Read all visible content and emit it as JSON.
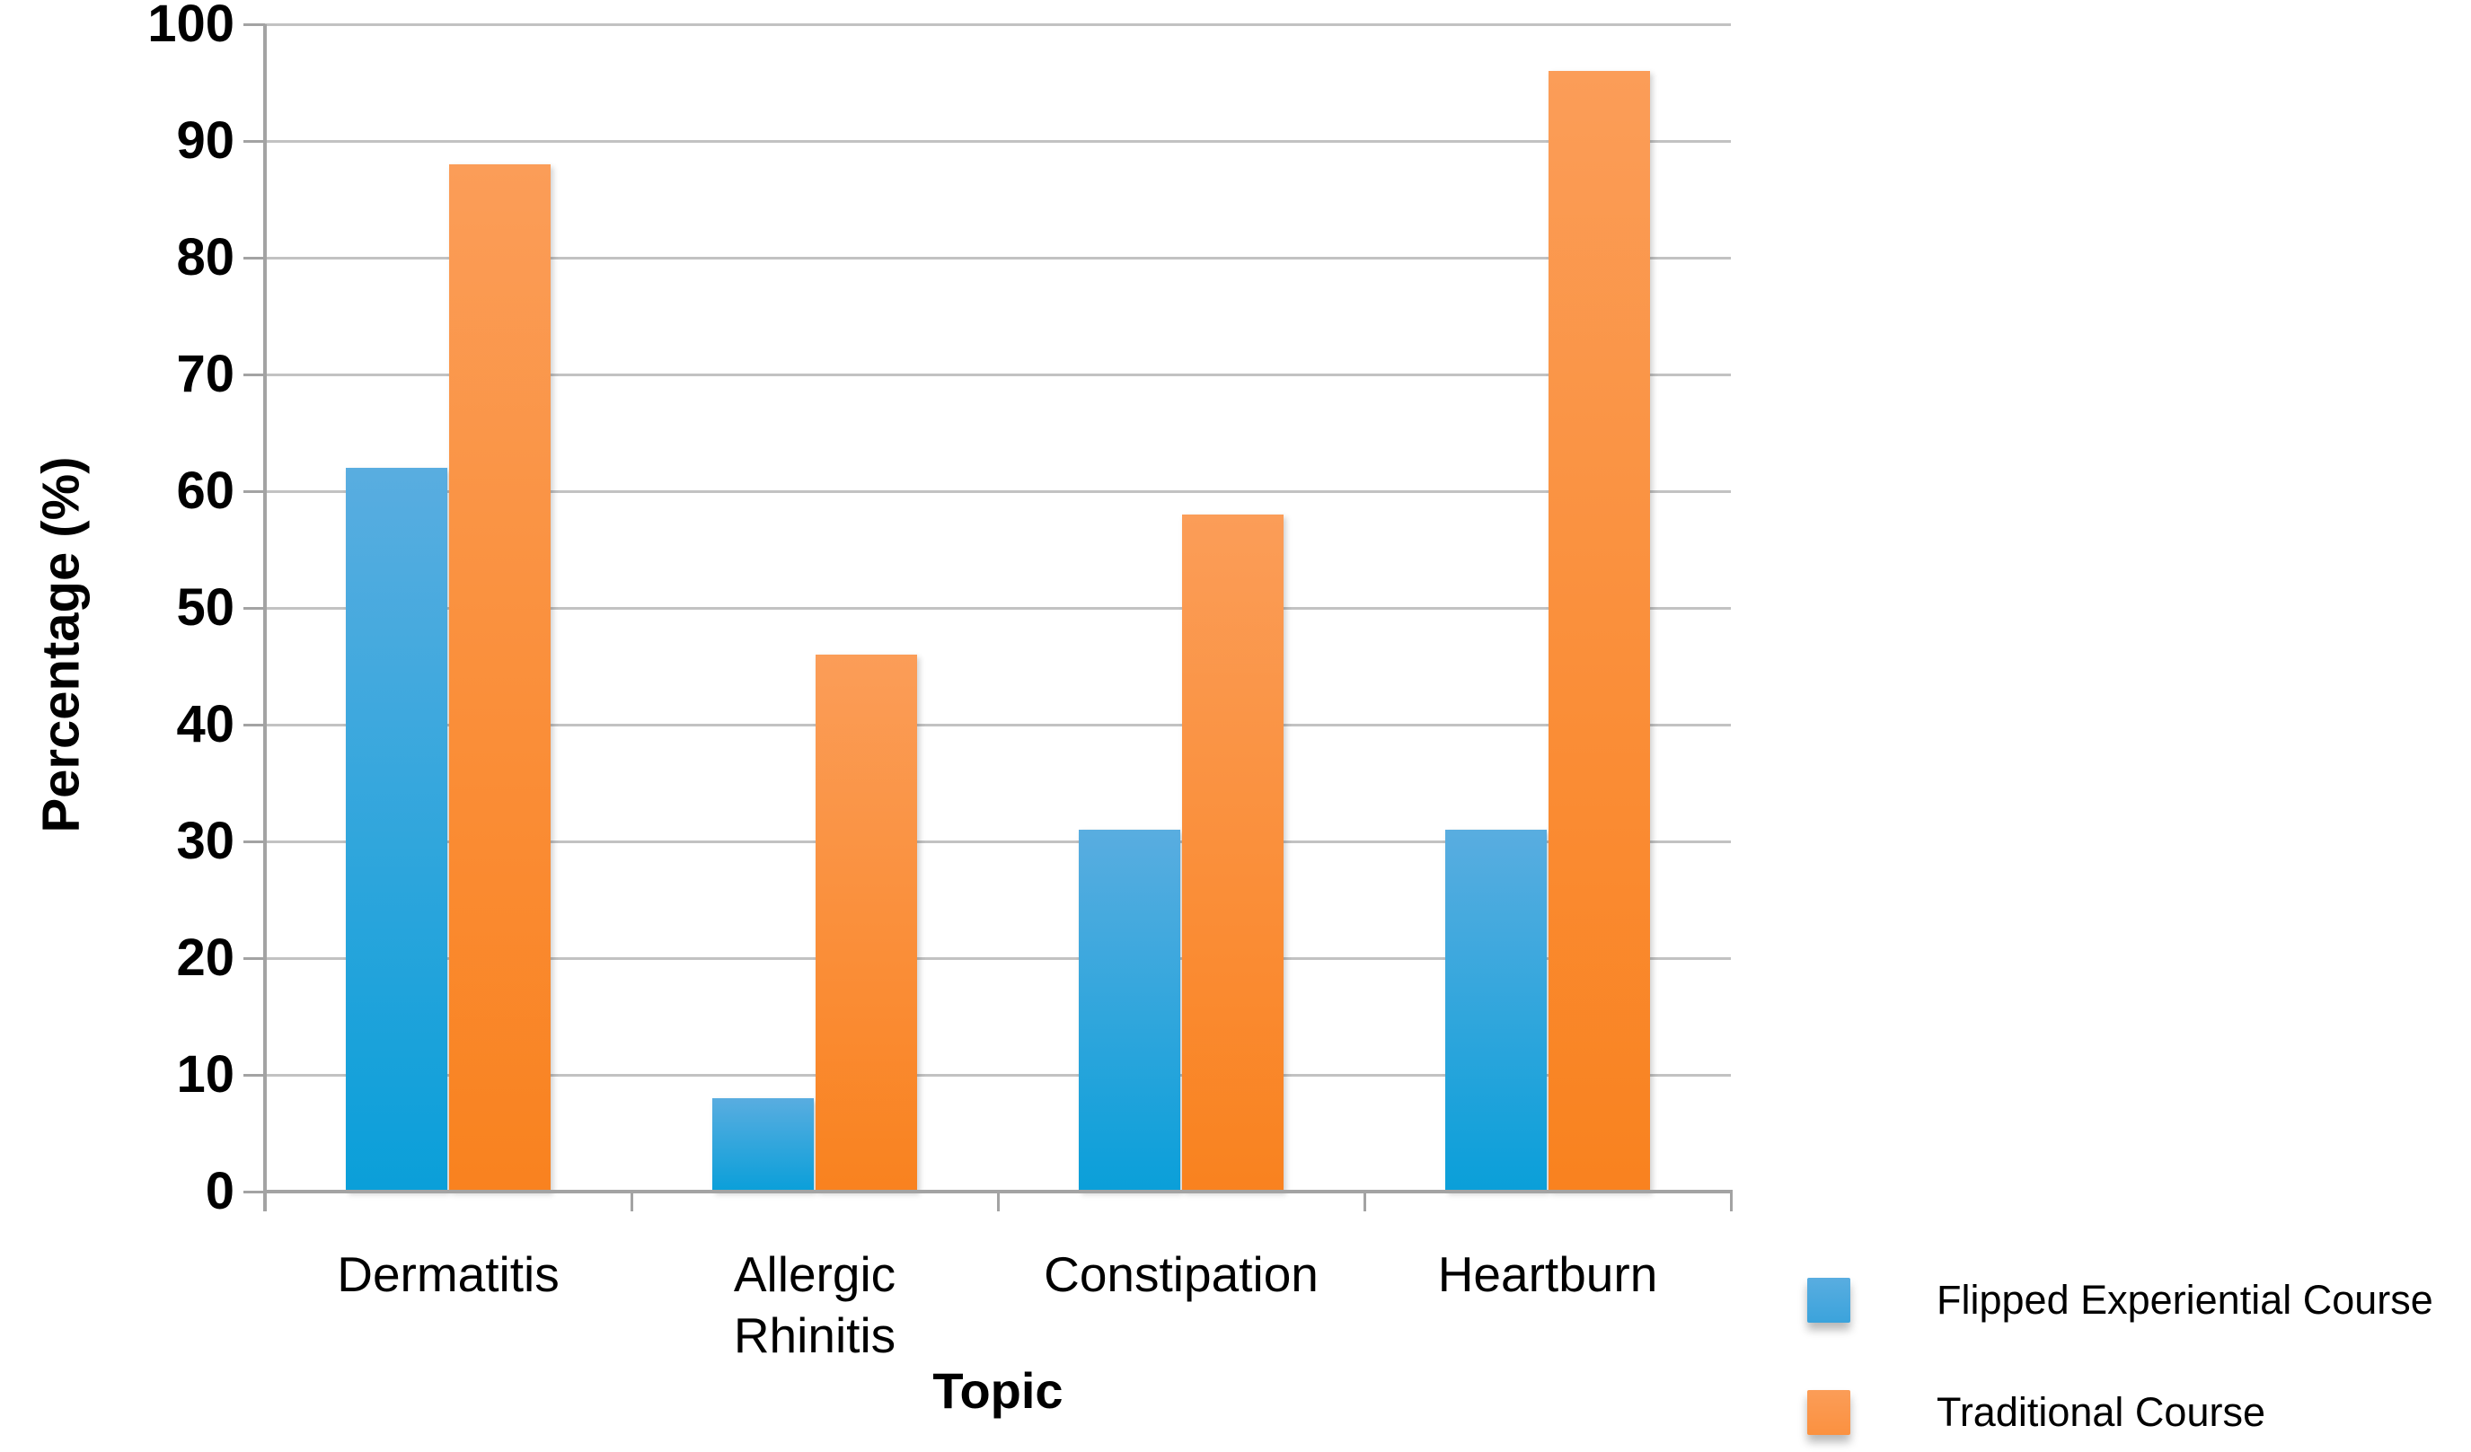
{
  "chart_data": {
    "type": "bar",
    "title": "",
    "xlabel": "Topic",
    "ylabel": "Percentage (%)",
    "ylim": [
      0,
      100
    ],
    "yticks": [
      0,
      10,
      20,
      30,
      40,
      50,
      60,
      70,
      80,
      90,
      100
    ],
    "grid": true,
    "legend_position": "bottom-right",
    "categories": [
      "Dermatitis",
      "Allergic Rhinitis",
      "Constipation",
      "Heartburn"
    ],
    "category_label_lines": [
      [
        "Dermatitis"
      ],
      [
        "Allergic",
        "Rhinitis"
      ],
      [
        "Constipation"
      ],
      [
        "Heartburn"
      ]
    ],
    "series": [
      {
        "name": "Flipped Experiential Course",
        "values": [
          62,
          8,
          31,
          31
        ],
        "color_top": "#59ADE0",
        "color_bottom": "#0A9FD9",
        "legend_color": "#3BA3DC"
      },
      {
        "name": "Traditional Course",
        "values": [
          88,
          46,
          58,
          96
        ],
        "color_top": "#FB9D58",
        "color_bottom": "#F9821F",
        "legend_color": "#FB9140"
      }
    ]
  },
  "colors": {
    "gridline": "#C2C2C2",
    "axis": "#A3A3A3",
    "text": "#000000",
    "background": "#FFFFFF"
  }
}
